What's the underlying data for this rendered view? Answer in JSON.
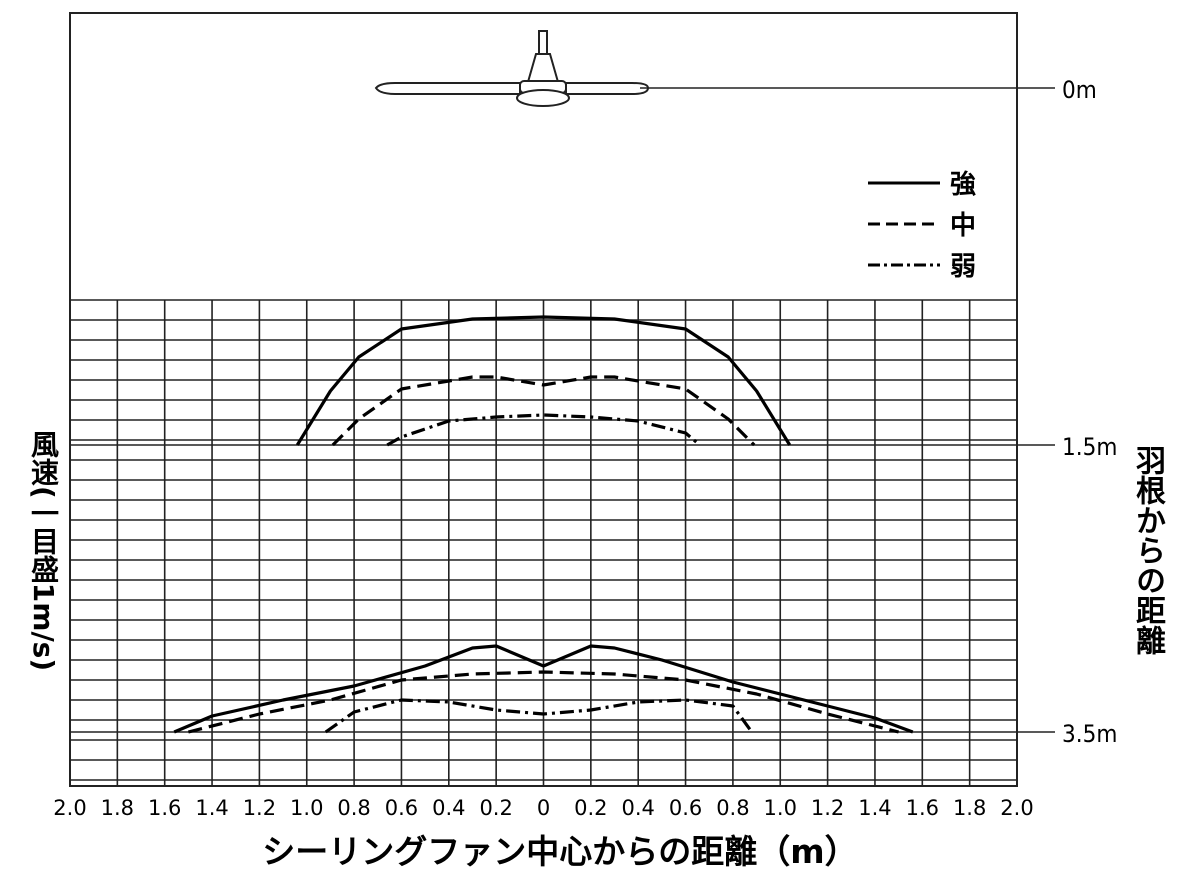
{
  "chart_data": {
    "type": "line",
    "title": "",
    "xlabel": "シーリングファン中心からの距離（m）",
    "ylabel": "風速(一目盛1m/s)",
    "y2label": "羽根からの距離",
    "x_ticks": [
      "2.0",
      "1.8",
      "1.6",
      "1.4",
      "1.2",
      "1.0",
      "0.8",
      "0.6",
      "0.4",
      "0.2",
      "0",
      "0.2",
      "0.4",
      "0.6",
      "0.8",
      "1.0",
      "1.2",
      "1.4",
      "1.6",
      "1.8",
      "2.0"
    ],
    "xlim": [
      -2.0,
      2.0
    ],
    "height_labels": [
      {
        "label": "0m",
        "depth": 0
      },
      {
        "label": "1.5m",
        "depth": 1.5
      },
      {
        "label": "3.5m",
        "depth": 3.5
      }
    ],
    "grid_cell_ms": 1,
    "grid": true,
    "legend_position": "top-right",
    "series": [
      {
        "name": "強",
        "style": "solid",
        "profiles": [
          {
            "level": "1.5m",
            "points": [
              [
                -1.04,
                0
              ],
              [
                -0.9,
                2.7
              ],
              [
                -0.78,
                4.4
              ],
              [
                -0.6,
                5.8
              ],
              [
                -0.3,
                6.3
              ],
              [
                0,
                6.4
              ],
              [
                0.3,
                6.3
              ],
              [
                0.6,
                5.8
              ],
              [
                0.78,
                4.4
              ],
              [
                0.9,
                2.7
              ],
              [
                1.04,
                0
              ]
            ]
          },
          {
            "level": "3.5m",
            "points": [
              [
                -1.56,
                0
              ],
              [
                -1.4,
                0.8
              ],
              [
                -1.1,
                1.6
              ],
              [
                -0.8,
                2.3
              ],
              [
                -0.5,
                3.3
              ],
              [
                -0.3,
                4.2
              ],
              [
                -0.2,
                4.3
              ],
              [
                0,
                3.3
              ],
              [
                0.2,
                4.3
              ],
              [
                0.3,
                4.2
              ],
              [
                0.5,
                3.6
              ],
              [
                0.8,
                2.5
              ],
              [
                1.1,
                1.6
              ],
              [
                1.4,
                0.7
              ],
              [
                1.56,
                0
              ]
            ]
          }
        ]
      },
      {
        "name": "中",
        "style": "dashed",
        "profiles": [
          {
            "level": "1.5m",
            "points": [
              [
                -0.89,
                0
              ],
              [
                -0.78,
                1.3
              ],
              [
                -0.6,
                2.8
              ],
              [
                -0.3,
                3.4
              ],
              [
                -0.2,
                3.4
              ],
              [
                0,
                3.0
              ],
              [
                0.2,
                3.4
              ],
              [
                0.3,
                3.4
              ],
              [
                0.6,
                2.8
              ],
              [
                0.78,
                1.3
              ],
              [
                0.89,
                0
              ]
            ]
          },
          {
            "level": "3.5m",
            "points": [
              [
                -1.5,
                0
              ],
              [
                -1.2,
                0.9
              ],
              [
                -0.9,
                1.6
              ],
              [
                -0.6,
                2.6
              ],
              [
                -0.3,
                2.9
              ],
              [
                0,
                3.0
              ],
              [
                0.3,
                2.9
              ],
              [
                0.6,
                2.6
              ],
              [
                0.9,
                1.9
              ],
              [
                1.2,
                0.9
              ],
              [
                1.5,
                0
              ]
            ]
          }
        ]
      },
      {
        "name": "弱",
        "style": "dashdot",
        "profiles": [
          {
            "level": "1.5m",
            "points": [
              [
                -0.66,
                0
              ],
              [
                -0.6,
                0.4
              ],
              [
                -0.4,
                1.2
              ],
              [
                -0.2,
                1.4
              ],
              [
                0,
                1.5
              ],
              [
                0.2,
                1.4
              ],
              [
                0.4,
                1.2
              ],
              [
                0.6,
                0.6
              ],
              [
                0.66,
                0
              ]
            ]
          },
          {
            "level": "3.5m",
            "points": [
              [
                -0.92,
                0
              ],
              [
                -0.8,
                1.0
              ],
              [
                -0.6,
                1.6
              ],
              [
                -0.4,
                1.5
              ],
              [
                -0.2,
                1.1
              ],
              [
                0,
                0.9
              ],
              [
                0.2,
                1.1
              ],
              [
                0.4,
                1.5
              ],
              [
                0.6,
                1.6
              ],
              [
                0.8,
                1.3
              ],
              [
                0.88,
                0
              ]
            ]
          }
        ]
      }
    ]
  }
}
